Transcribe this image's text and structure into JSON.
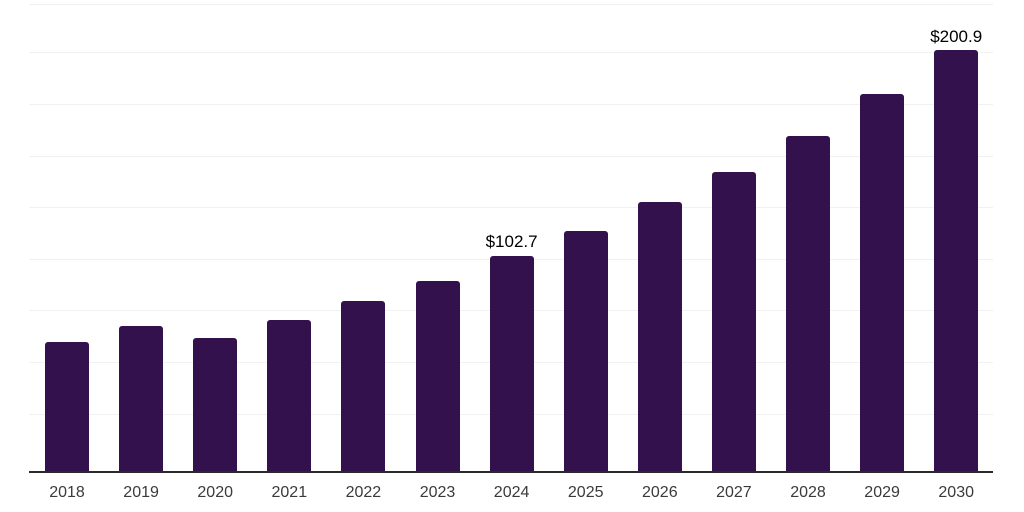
{
  "chart_data": {
    "type": "bar",
    "title": "",
    "xlabel": "",
    "ylabel": "",
    "categories": [
      "2018",
      "2019",
      "2020",
      "2021",
      "2022",
      "2023",
      "2024",
      "2025",
      "2026",
      "2027",
      "2028",
      "2029",
      "2030"
    ],
    "values": [
      61.5,
      69.3,
      63.6,
      72.0,
      81.0,
      90.6,
      102.7,
      114.4,
      128.4,
      142.8,
      160.1,
      180.0,
      200.9
    ],
    "data_labels": [
      {
        "category": "2024",
        "text": "$102.7"
      },
      {
        "category": "2030",
        "text": "$200.9"
      }
    ],
    "ylim": [
      0,
      225
    ],
    "grid": "horizontal",
    "legend": false,
    "y_axis_labels_visible": false,
    "colors": {
      "bar": "#33114D",
      "axis_line": "#2a2a2a",
      "gridline": "#f1f1f1",
      "tick_label": "#3a3a3a",
      "data_label": "#000000",
      "background": "#ffffff"
    }
  }
}
